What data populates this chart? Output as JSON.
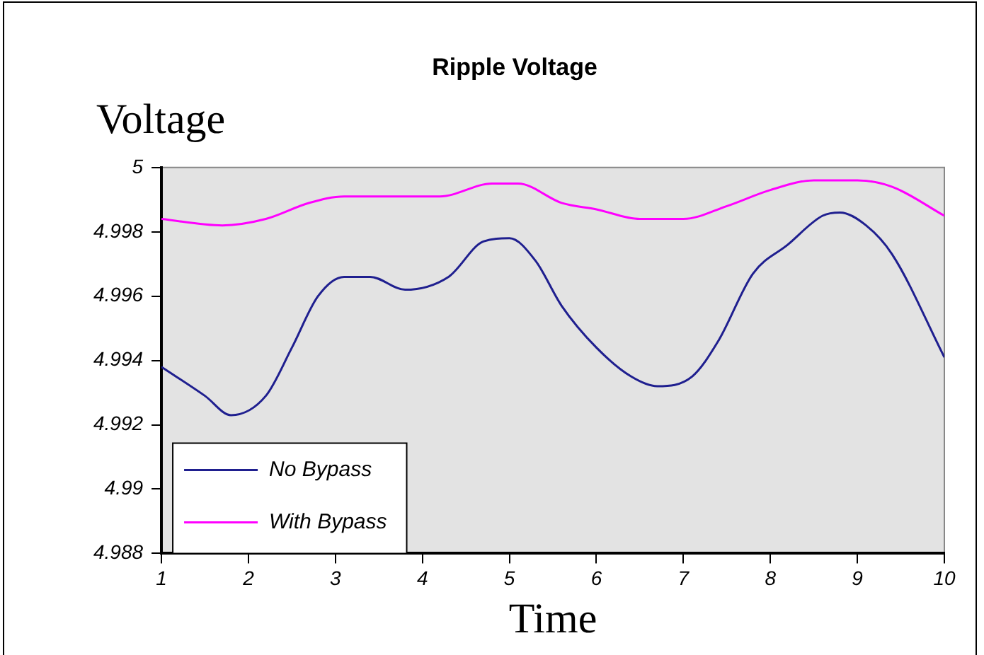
{
  "chart_data": {
    "type": "line",
    "title": "Ripple Voltage",
    "xlabel": "Time",
    "ylabel": "Voltage",
    "xlim": [
      1,
      10
    ],
    "xticks": [
      1,
      2,
      3,
      4,
      5,
      6,
      7,
      8,
      9,
      10
    ],
    "ylim": [
      4.988,
      5
    ],
    "yticks": [
      4.988,
      4.99,
      4.992,
      4.994,
      4.996,
      4.998,
      5
    ],
    "grid": false,
    "legend": "bottom left",
    "marker": "none",
    "line_style": "solid",
    "series": [
      {
        "name": "No Bypass",
        "color": "#1f1f8f",
        "x": [
          1,
          1.5,
          1.8,
          2.2,
          2.5,
          2.8,
          3.1,
          3.4,
          3.8,
          4.3,
          4.7,
          5,
          5.3,
          5.6,
          6,
          6.4,
          6.7,
          7.1,
          7.4,
          7.8,
          8.2,
          8.6,
          8.8,
          9.1,
          9.4,
          10
        ],
        "values": [
          4.9938,
          4.9929,
          4.9923,
          4.9929,
          4.9944,
          4.996,
          4.9966,
          4.9966,
          4.9962,
          4.9966,
          4.9977,
          4.9978,
          4.9971,
          4.9957,
          4.9944,
          4.9935,
          4.9932,
          4.9935,
          4.9946,
          4.9967,
          4.9976,
          4.9985,
          4.9986,
          4.9982,
          4.9973,
          4.9941
        ]
      },
      {
        "name": "With Bypass",
        "color": "#ff00ff",
        "x": [
          1,
          1.7,
          2.2,
          2.7,
          3.1,
          3.7,
          4.2,
          4.8,
          5.1,
          5.6,
          6,
          6.5,
          7,
          7.5,
          8,
          8.5,
          9,
          9.4,
          10
        ],
        "values": [
          4.9984,
          4.9982,
          4.9984,
          4.9989,
          4.9991,
          4.9991,
          4.9991,
          4.9995,
          4.9995,
          4.9989,
          4.9987,
          4.9984,
          4.9984,
          4.9988,
          4.9993,
          4.9996,
          4.9996,
          4.9994,
          4.9985
        ]
      }
    ]
  }
}
